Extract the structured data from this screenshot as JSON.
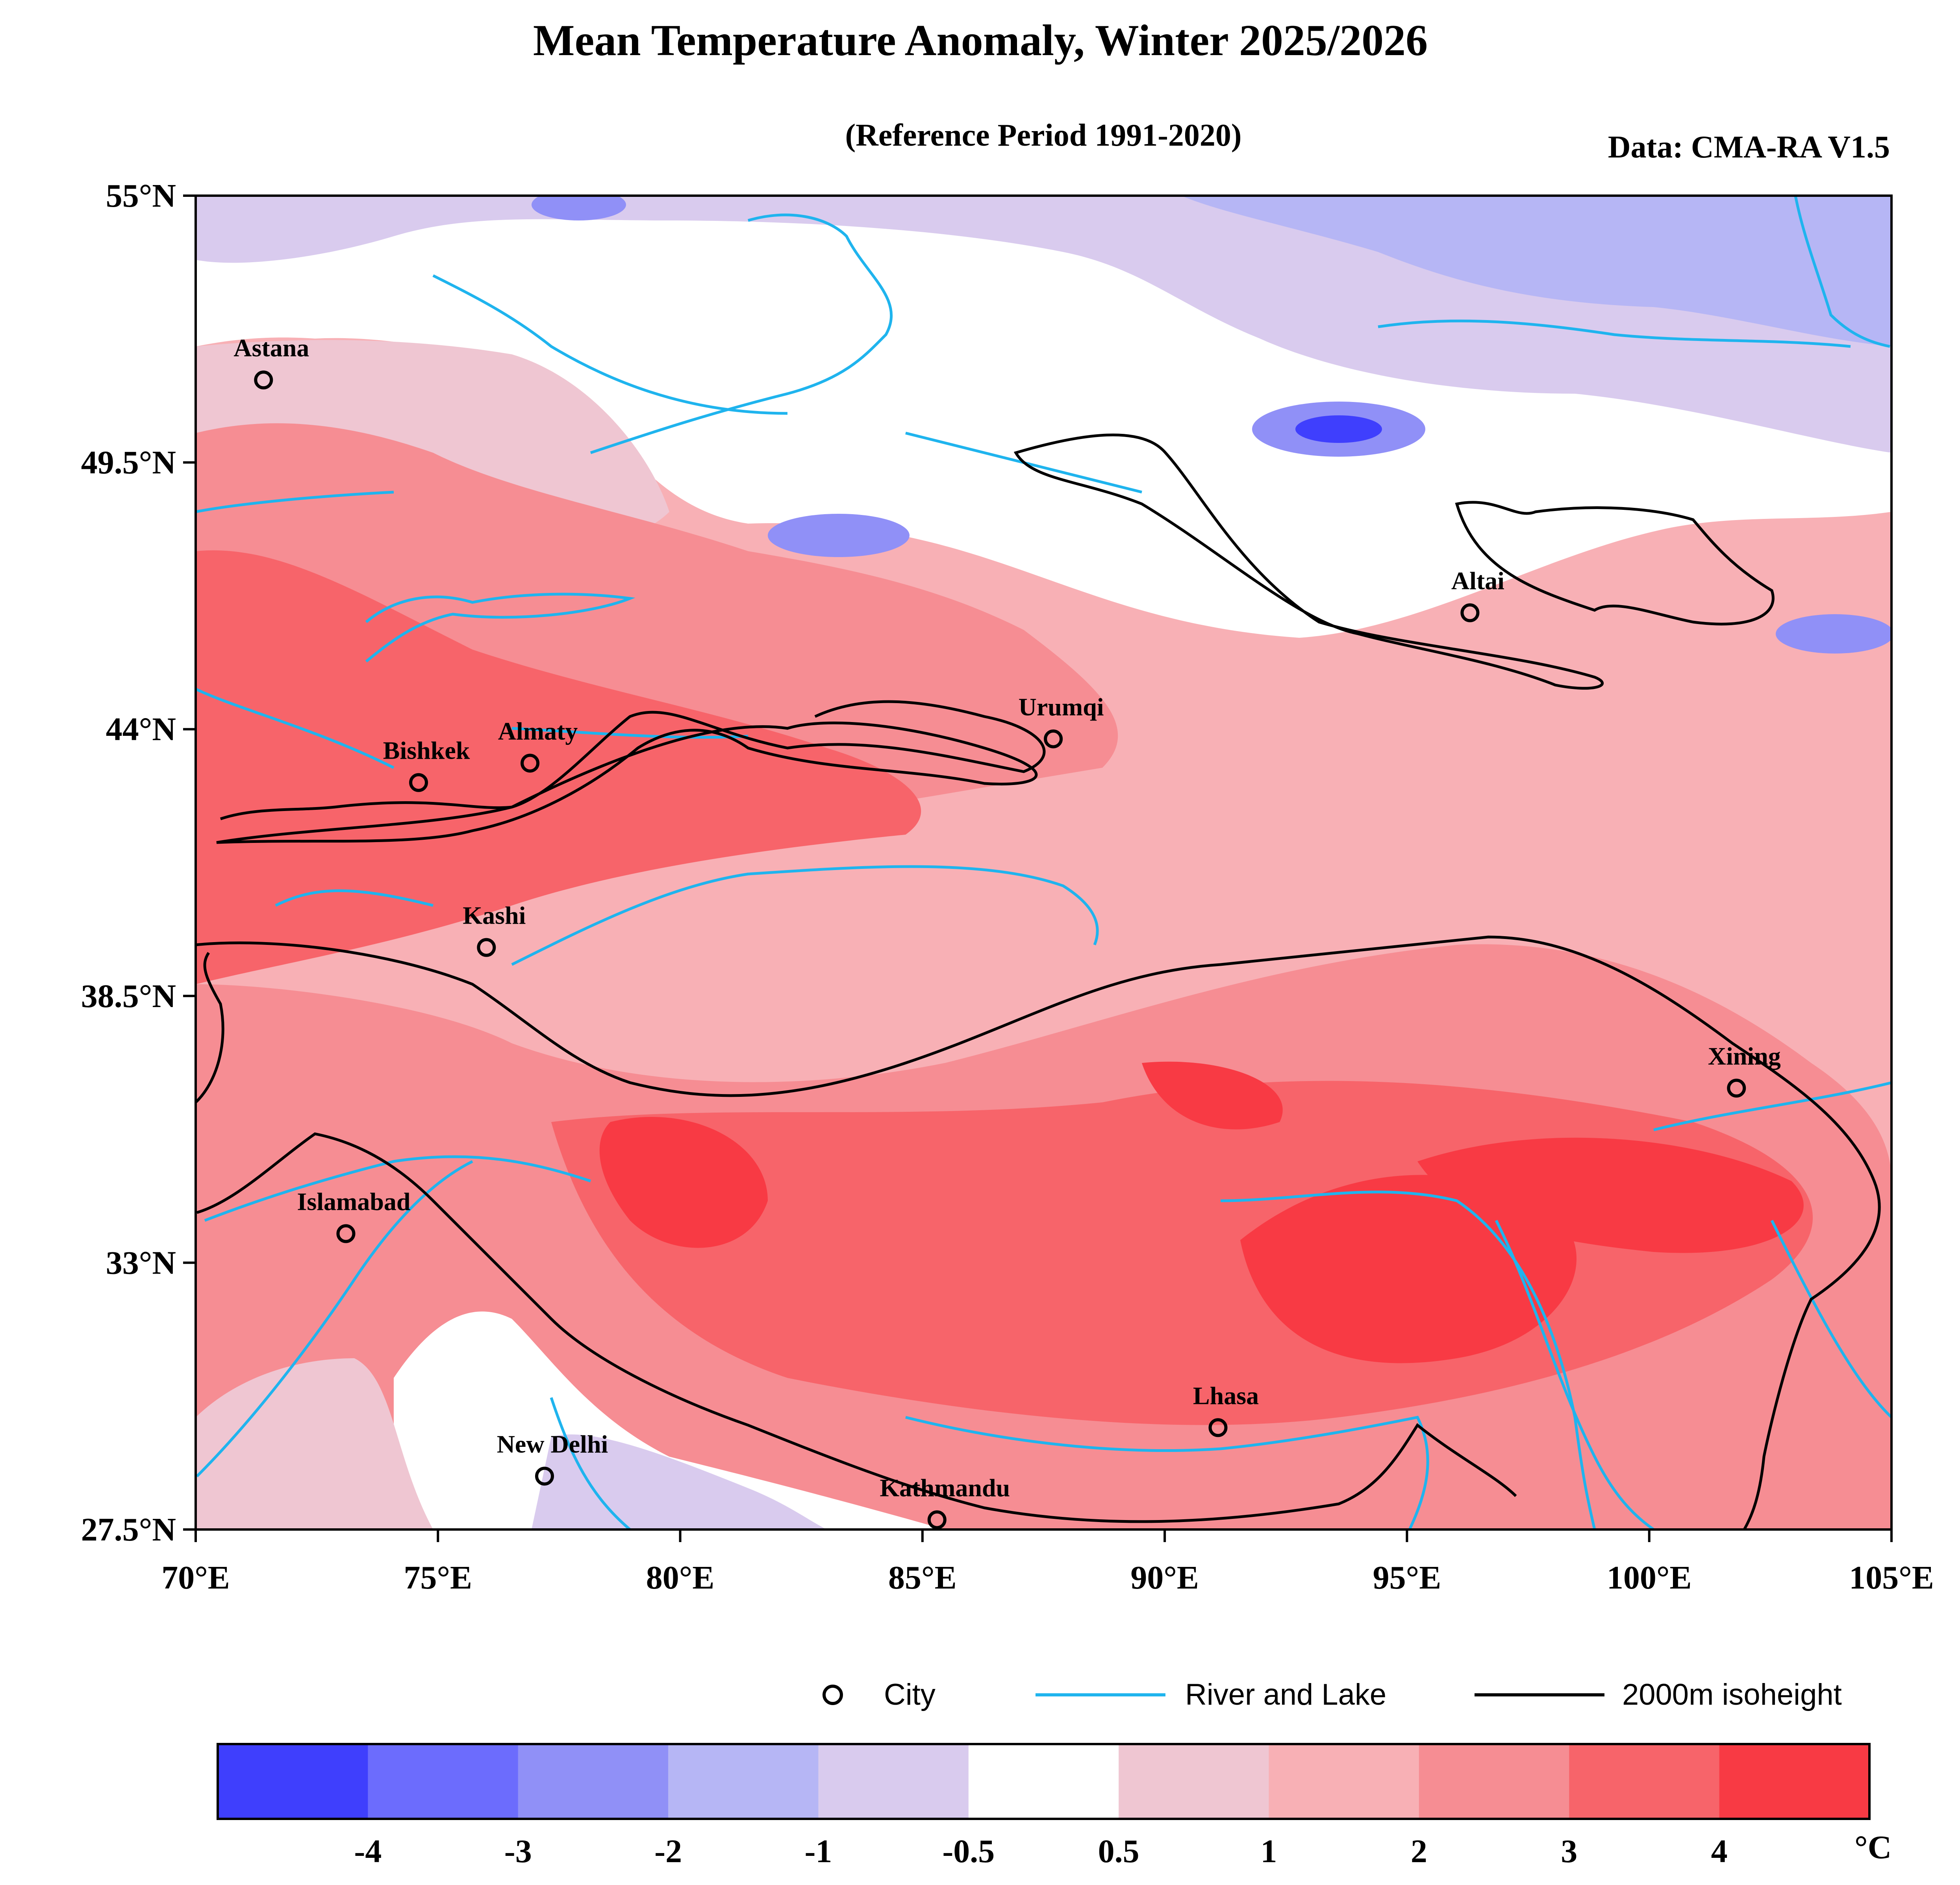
{
  "title": "Mean Temperature Anomaly, Winter 2025/2026",
  "subtitle": "(Reference Period 1991-2020)",
  "source": "Data: CMA-RA V1.5",
  "map": {
    "lon_range": [
      70,
      105
    ],
    "lat_range": [
      27.5,
      55
    ],
    "x_ticks": [
      {
        "value": 70,
        "label": "70°E"
      },
      {
        "value": 75,
        "label": "75°E"
      },
      {
        "value": 80,
        "label": "80°E"
      },
      {
        "value": 85,
        "label": "85°E"
      },
      {
        "value": 90,
        "label": "90°E"
      },
      {
        "value": 95,
        "label": "95°E"
      },
      {
        "value": 100,
        "label": "100°E"
      },
      {
        "value": 105,
        "label": "105°E"
      }
    ],
    "y_ticks": [
      {
        "value": 55,
        "label": "55°N"
      },
      {
        "value": 49.5,
        "label": "49.5°N"
      },
      {
        "value": 44,
        "label": "44°N"
      },
      {
        "value": 38.5,
        "label": "38.5°N"
      },
      {
        "value": 33,
        "label": "33°N"
      },
      {
        "value": 27.5,
        "label": "27.5°N"
      }
    ],
    "cities": [
      {
        "name": "Astana",
        "lon": 71.4,
        "lat": 51.2
      },
      {
        "name": "Almaty",
        "lon": 76.9,
        "lat": 43.3
      },
      {
        "name": "Bishkek",
        "lon": 74.6,
        "lat": 42.9
      },
      {
        "name": "Urumqi",
        "lon": 87.7,
        "lat": 43.8
      },
      {
        "name": "Altai",
        "lon": 96.3,
        "lat": 46.4
      },
      {
        "name": "Kashi",
        "lon": 76.0,
        "lat": 39.5
      },
      {
        "name": "Xining",
        "lon": 101.8,
        "lat": 36.6
      },
      {
        "name": "Islamabad",
        "lon": 73.1,
        "lat": 33.6
      },
      {
        "name": "Lhasa",
        "lon": 91.1,
        "lat": 29.6
      },
      {
        "name": "New Delhi",
        "lon": 77.2,
        "lat": 28.6
      },
      {
        "name": "Kathmandu",
        "lon": 85.3,
        "lat": 27.7
      }
    ]
  },
  "legend": {
    "city": "City",
    "river": "River and Lake",
    "isoheight": "2000m isoheight"
  },
  "colorbar": {
    "unit": "°C",
    "colors": [
      "#3f3ffd",
      "#6c6cfd",
      "#9090f7",
      "#b6b6f5",
      "#d9cbee",
      "#ffffff",
      "#efc6d2",
      "#f8b0b5",
      "#f68d93",
      "#f7646a",
      "#f83a44"
    ],
    "labels": [
      "-4",
      "-3",
      "-2",
      "-1",
      "-0.5",
      "0.5",
      "1",
      "2",
      "3",
      "4"
    ]
  },
  "colors": {
    "river": "#1fb4ee",
    "isoheight": "#000000"
  }
}
